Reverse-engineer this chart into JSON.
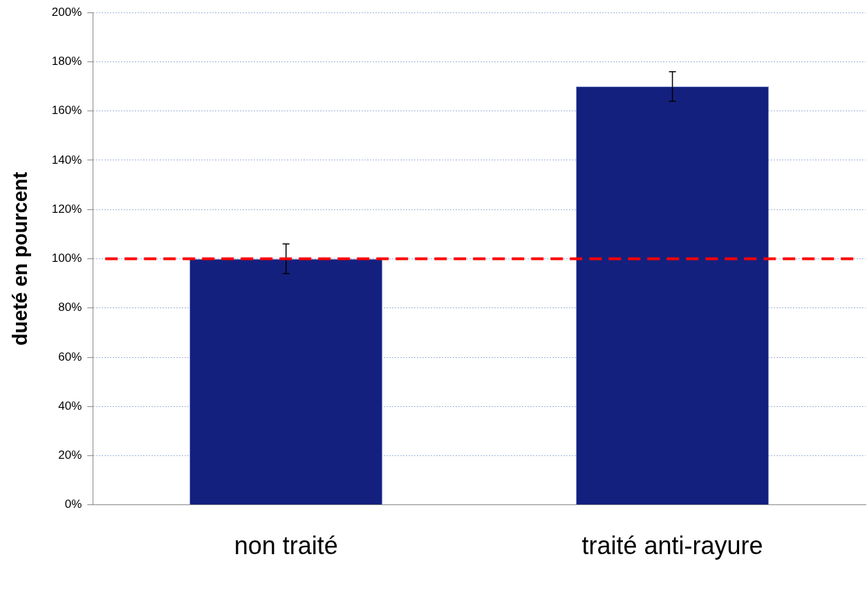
{
  "chart_data": {
    "type": "bar",
    "ylabel": "dueté en pourcent",
    "categories": [
      "non traité",
      "traité anti-rayure"
    ],
    "values": [
      100,
      170
    ],
    "errors": [
      6,
      6
    ],
    "color": "#14207e",
    "ylim": [
      0,
      200
    ],
    "yticks": [
      {
        "value": 0,
        "label": "0%"
      },
      {
        "value": 20,
        "label": "20%"
      },
      {
        "value": 40,
        "label": "40%"
      },
      {
        "value": 60,
        "label": "60%"
      },
      {
        "value": 80,
        "label": "80%"
      },
      {
        "value": 100,
        "label": "100%"
      },
      {
        "value": 120,
        "label": "120%"
      },
      {
        "value": 140,
        "label": "140%"
      },
      {
        "value": 160,
        "label": "160%"
      },
      {
        "value": 180,
        "label": "180%"
      },
      {
        "value": 200,
        "label": "200%"
      }
    ],
    "grid": "y",
    "legend": false,
    "ref_lines": [
      {
        "axis": "y",
        "value": 100,
        "color": "#ff0000",
        "line_style": "dashed"
      }
    ]
  }
}
